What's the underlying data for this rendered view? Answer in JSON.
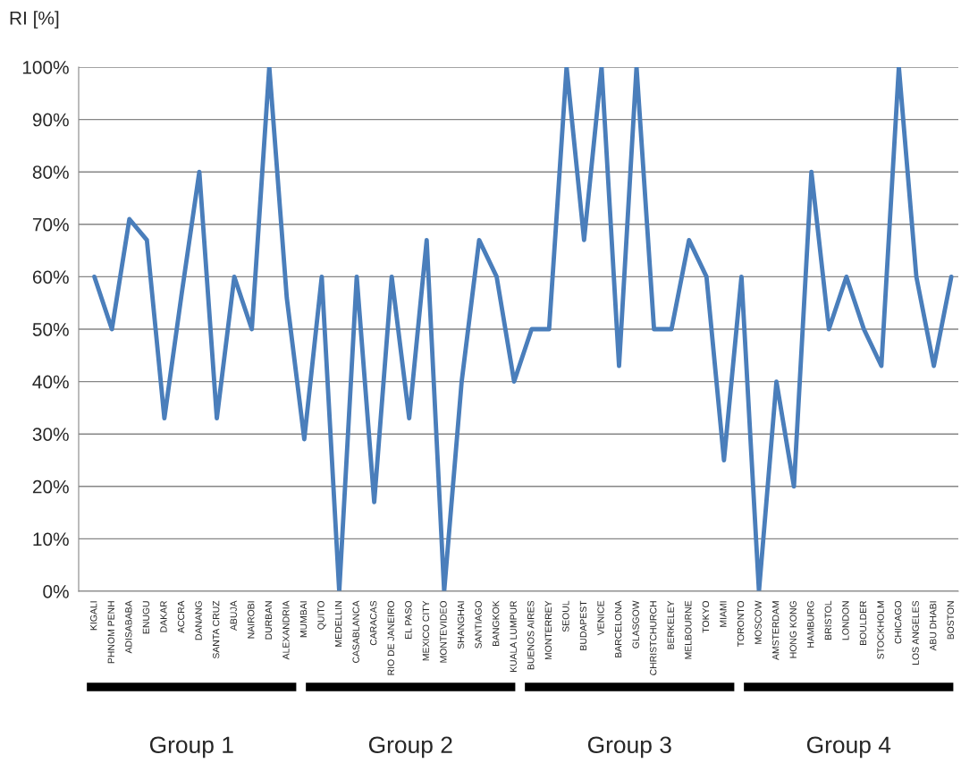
{
  "chart_data": {
    "type": "line",
    "ylabel": "RI [%]",
    "categories": [
      "KIGALI",
      "PHNOM PENH",
      "ADISABABA",
      "ENUGU",
      "DAKAR",
      "ACCRA",
      "DANANG",
      "SANTA CRUZ",
      "ABUJA",
      "NAIROBI",
      "DURBAN",
      "ALEXANDRIA",
      "MUMBAI",
      "QUITO",
      "MEDELLIN",
      "CASABLANCA",
      "CARACAS",
      "RIO DE JANEIRO",
      "EL PASO",
      "MEXICO CITY",
      "MONTEVIDEO",
      "SHANGHAI",
      "SANTIAGO",
      "BANGKOK",
      "KUALA LUMPUR",
      "BUENOS AIRES",
      "MONTERREY",
      "SEOUL",
      "BUDAPEST",
      "VENICE",
      "BARCELONA",
      "GLASGOW",
      "CHRISTCHURCH",
      "BERKELEY",
      "MELBOURNE",
      "TOKYO",
      "MIAMI",
      "TORONTO",
      "MOSCOW",
      "AMSTERDAM",
      "HONG KONG",
      "HAMBURG",
      "BRISTOL",
      "LONDON",
      "BOULDER",
      "STOCKHOLM",
      "CHICAGO",
      "LOS ANGELES",
      "ABU DHABI",
      "BOSTON"
    ],
    "series": [
      {
        "color": "#4a7ebb",
        "values": [
          60,
          50,
          71,
          67,
          33,
          57,
          80,
          33,
          60,
          50,
          100,
          56,
          29,
          60,
          0,
          60,
          17,
          60,
          33,
          67,
          0,
          40,
          67,
          60,
          40,
          50,
          50,
          100,
          67,
          100,
          43,
          100,
          50,
          50,
          67,
          60,
          25,
          60,
          0,
          40,
          20,
          80,
          50,
          60,
          50,
          43,
          100,
          60,
          43,
          60
        ]
      }
    ],
    "ylim": [
      0,
      100
    ],
    "yticks": [
      {
        "value": 0,
        "label": "0%"
      },
      {
        "value": 10,
        "label": "10%"
      },
      {
        "value": 20,
        "label": "20%"
      },
      {
        "value": 30,
        "label": "30%"
      },
      {
        "value": 40,
        "label": "40%"
      },
      {
        "value": 50,
        "label": "50%"
      },
      {
        "value": 60,
        "label": "60%"
      },
      {
        "value": 70,
        "label": "70%"
      },
      {
        "value": 80,
        "label": "80%"
      },
      {
        "value": 90,
        "label": "90%"
      },
      {
        "value": 100,
        "label": "100%"
      }
    ],
    "grid": "y",
    "marker": "none",
    "line_style": "solid",
    "annotations": [
      "Group 1",
      "Group 2",
      "Group 3",
      "Group 4"
    ]
  }
}
